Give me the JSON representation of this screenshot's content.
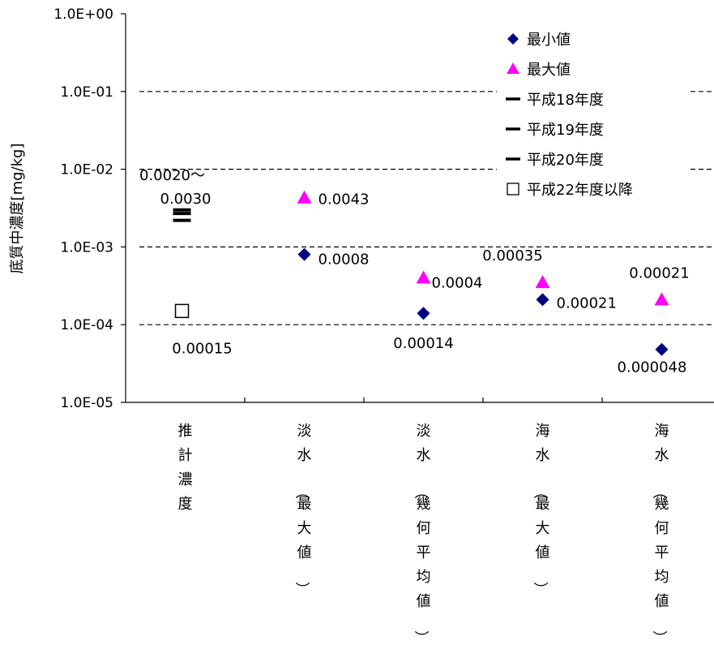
{
  "chart_data": {
    "type": "scatter",
    "ylabel": "底質中濃度[mg/kg]",
    "yscale": "log",
    "ylim": [
      1e-05,
      1
    ],
    "y_ticks": [
      "1.0E+00",
      "1.0E-01",
      "1.0E-02",
      "1.0E-03",
      "1.0E-04",
      "1.0E-05"
    ],
    "grid": "dashed at 1.0E-01, 1.0E-02, 1.0E-03, 1.0E-04",
    "categories": [
      "推計濃度",
      "淡水（最大値）",
      "淡水（幾何平均値）",
      "海水（最大値）",
      "海水（幾何平均値）"
    ],
    "legend_position": "top-right",
    "legend": [
      {
        "label": "最小値",
        "marker": "diamond",
        "color": "#000080"
      },
      {
        "label": "最大値",
        "marker": "triangle",
        "color": "#ff00ff"
      },
      {
        "label": "平成18年度",
        "marker": "dash",
        "color": "#000000"
      },
      {
        "label": "平成19年度",
        "marker": "dash",
        "color": "#000000"
      },
      {
        "label": "平成20年度",
        "marker": "dash",
        "color": "#000000"
      },
      {
        "label": "平成22年度以降",
        "marker": "square-open",
        "color": "#000000"
      }
    ],
    "series": [
      {
        "name": "最小値",
        "marker": "diamond",
        "color": "#000080",
        "points": [
          {
            "category": 1,
            "y": 0.0008,
            "label": "0.0008"
          },
          {
            "category": 2,
            "y": 0.00014,
            "label": "0.00014"
          },
          {
            "category": 3,
            "y": 0.00021,
            "label": "0.00021"
          },
          {
            "category": 4,
            "y": 4.8e-05,
            "label": "0.000048"
          }
        ]
      },
      {
        "name": "最大値",
        "marker": "triangle",
        "color": "#ff00ff",
        "points": [
          {
            "category": 1,
            "y": 0.0043,
            "label": "0.0043"
          },
          {
            "category": 2,
            "y": 0.0004,
            "label": "0.0004"
          },
          {
            "category": 3,
            "y": 0.00035,
            "label": "0.00035"
          },
          {
            "category": 4,
            "y": 0.00021,
            "label": "0.00021"
          }
        ]
      },
      {
        "name": "平成18年度",
        "marker": "dash",
        "color": "#000000",
        "points": [
          {
            "category": 0,
            "y": 0.003
          }
        ]
      },
      {
        "name": "平成19年度",
        "marker": "dash",
        "color": "#000000",
        "points": [
          {
            "category": 0,
            "y": 0.0027
          }
        ]
      },
      {
        "name": "平成20年度",
        "marker": "dash",
        "color": "#000000",
        "points": [
          {
            "category": 0,
            "y": 0.0022
          }
        ]
      },
      {
        "name": "平成22年度以降",
        "marker": "square-open",
        "color": "#000000",
        "points": [
          {
            "category": 0,
            "y": 0.00015,
            "label": "0.00015"
          }
        ]
      }
    ],
    "annotations": [
      "0.0020～",
      "0.0030"
    ]
  }
}
